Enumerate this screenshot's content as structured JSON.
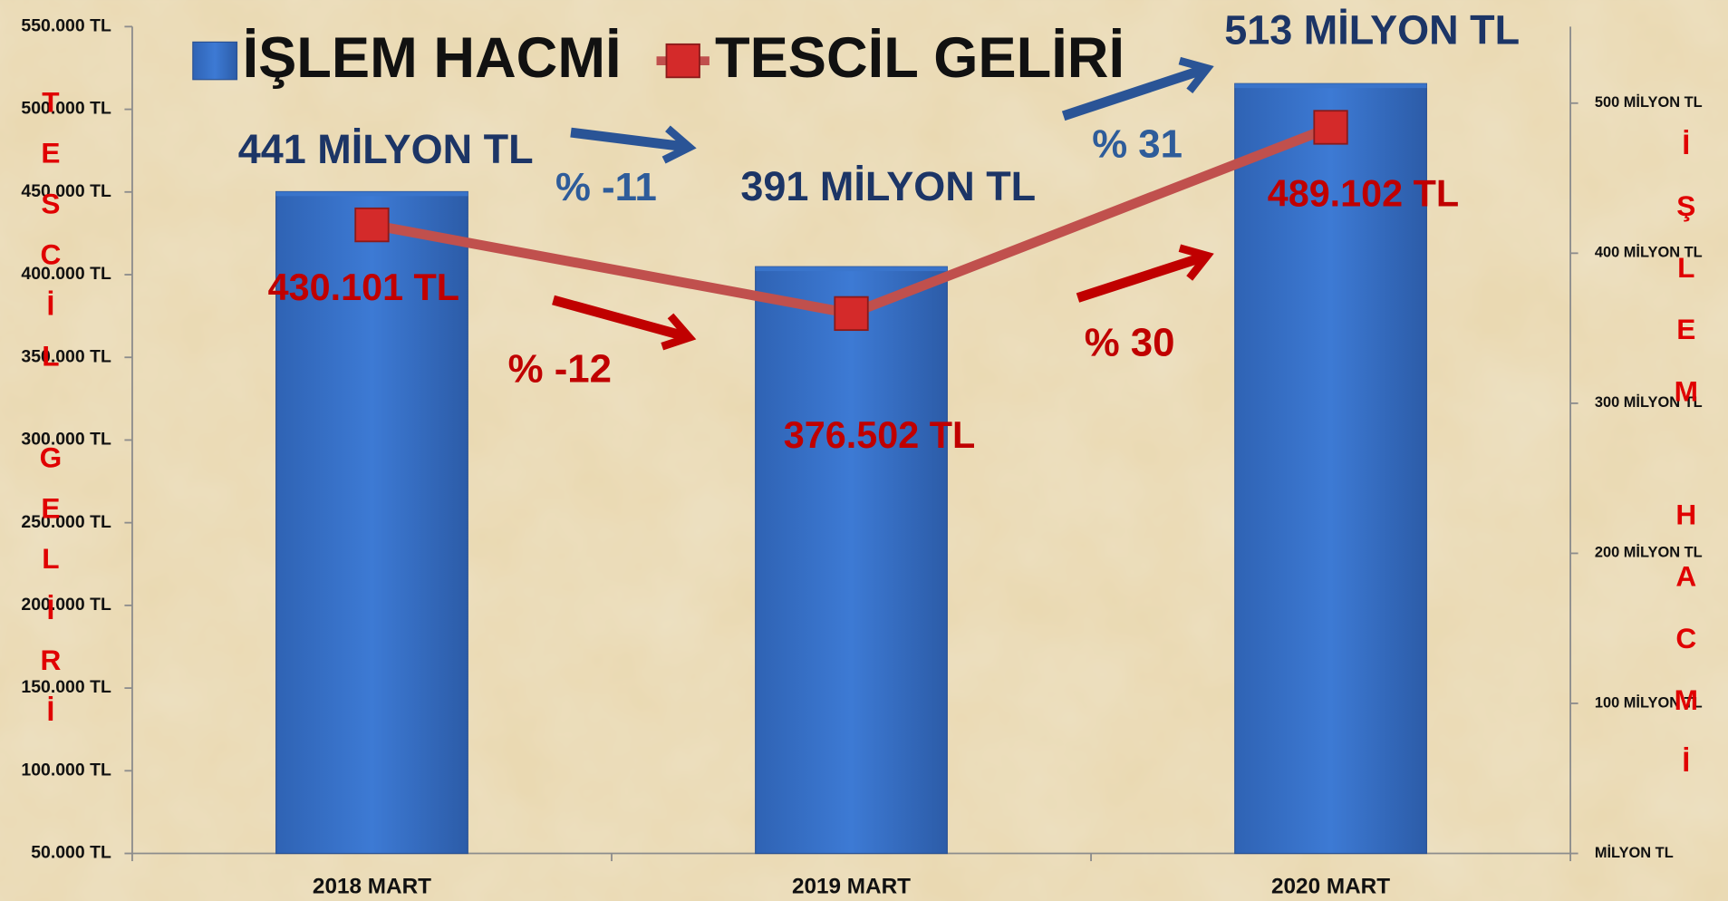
{
  "chart_data": {
    "type": "bar",
    "categories": [
      "2018 MART",
      "2019 MART",
      "2020 MART"
    ],
    "series": [
      {
        "name": "İŞLEM HACMİ",
        "type": "bar",
        "axis": "y2",
        "color": "#3b76cc",
        "values": [
          441,
          391,
          513
        ],
        "value_labels": [
          "441 MİLYON TL",
          "391 MİLYON TL",
          "513 MİLYON TL"
        ]
      },
      {
        "name": "TESCİL GELİRİ",
        "type": "line",
        "color": "#c0504d",
        "values": [
          430101,
          376502,
          489102
        ],
        "value_labels": [
          "430.101 TL",
          "376.502 TL",
          "489.102 TL"
        ]
      }
    ],
    "ylabel": "TESCİL GELİRİ",
    "y2label": "İŞLEM HACMİ",
    "ylim": [
      50000,
      550000
    ],
    "yticks": [
      {
        "value": 50000,
        "label": "50.000 TL"
      },
      {
        "value": 100000,
        "label": "100.000 TL"
      },
      {
        "value": 150000,
        "label": "150.000 TL"
      },
      {
        "value": 200000,
        "label": "200.000 TL"
      },
      {
        "value": 250000,
        "label": "250.000 TL"
      },
      {
        "value": 300000,
        "label": "300.000 TL"
      },
      {
        "value": 350000,
        "label": "350.000 TL"
      },
      {
        "value": 400000,
        "label": "400.000 TL"
      },
      {
        "value": 450000,
        "label": "450.000 TL"
      },
      {
        "value": 500000,
        "label": "500.000 TL"
      },
      {
        "value": 550000,
        "label": "550.000 TL"
      }
    ],
    "y2lim": [
      0,
      551
    ],
    "y2ticks": [
      {
        "value": 0,
        "label": "MİLYON TL"
      },
      {
        "value": 100,
        "label": "100 MİLYON TL"
      },
      {
        "value": 200,
        "label": "200 MİLYON TL"
      },
      {
        "value": 300,
        "label": "300 MİLYON TL"
      },
      {
        "value": 400,
        "label": "400 MİLYON TL"
      },
      {
        "value": 500,
        "label": "500 MİLYON TL"
      }
    ],
    "annotations": [
      {
        "text": "% -11",
        "color": "#2e5c9a"
      },
      {
        "text": "% 31",
        "color": "#2e5c9a"
      },
      {
        "text": "% -12",
        "color": "#c00000"
      },
      {
        "text": "% 30",
        "color": "#c00000"
      }
    ],
    "legend": "top"
  }
}
